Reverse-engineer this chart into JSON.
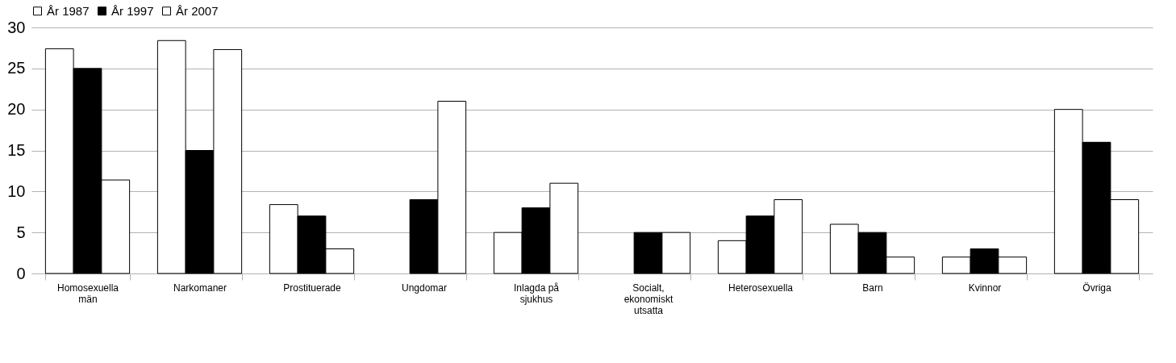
{
  "chart_data": {
    "type": "bar",
    "categories": [
      "Homosexuella män",
      "Narkomaner",
      "Prostituerade",
      "Ungdomar",
      "Inlagda på sjukhus",
      "Socialt, ekonomiskt utsatta",
      "Heterosexuella",
      "Barn",
      "Kvinnor",
      "Övriga"
    ],
    "series": [
      {
        "name": "År 1987",
        "color": "#ffffff",
        "values": [
          27.4,
          28.4,
          8.4,
          null,
          5,
          null,
          4,
          6,
          2,
          20
        ]
      },
      {
        "name": "År 1997",
        "color": "#000000",
        "values": [
          25,
          15,
          7,
          9,
          8,
          5,
          7,
          5,
          3,
          16
        ]
      },
      {
        "name": "År 2007",
        "color": "#ffffff",
        "values": [
          11.4,
          27.3,
          3,
          21,
          11,
          5,
          9,
          2,
          2,
          9
        ]
      }
    ],
    "ylim": [
      0,
      30
    ],
    "yticks": [
      0,
      5,
      10,
      15,
      20,
      25,
      30
    ],
    "grid": "y",
    "legend": "top"
  }
}
